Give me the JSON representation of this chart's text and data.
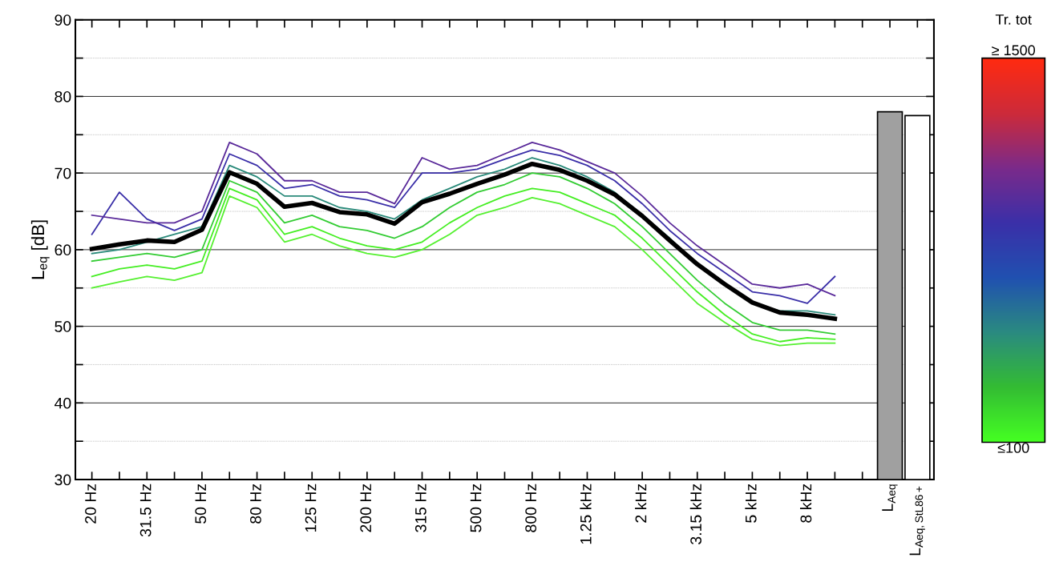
{
  "chart_data": {
    "type": "line",
    "ylabel": "L$_{eq}$ [dB]",
    "categories": [
      "20 Hz",
      null,
      "31.5 Hz",
      null,
      "50 Hz",
      null,
      "80 Hz",
      null,
      "125 Hz",
      null,
      "200 Hz",
      null,
      "315 Hz",
      null,
      "500 Hz",
      null,
      "800 Hz",
      null,
      "1.25 kHz",
      null,
      "2 kHz",
      null,
      "3.15 kHz",
      null,
      "5 kHz",
      null,
      "8 kHz",
      null,
      null,
      "L$_{Aeq}$",
      "L$_{Aeq,StL86+}$"
    ],
    "ylim": [
      30,
      90
    ],
    "yticks": [
      30,
      {
        "value": 35,
        "label": null
      },
      40,
      {
        "value": 45,
        "label": null
      },
      50,
      {
        "value": 55,
        "label": null
      },
      60,
      {
        "value": 65,
        "label": null
      },
      70,
      {
        "value": 75,
        "label": null
      },
      80,
      {
        "value": 85,
        "label": null
      },
      90
    ],
    "grid": "y",
    "legend": false,
    "marker": "none",
    "line_style": "solid",
    "clabel": "Tr. tot",
    "clim": [
      100,
      1500
    ],
    "cticks": [
      {
        "value": 100,
        "label": "≤100"
      },
      {
        "value": 1500,
        "label": "≥ 1500"
      }
    ],
    "series": [
      {
        "color": "#55f030",
        "values": [
          55,
          55.8,
          56.5,
          56,
          57,
          67,
          65.5,
          61,
          62,
          60.5,
          59.5,
          59,
          60,
          62,
          64.5,
          65.5,
          66.8,
          66,
          64.5,
          63,
          60,
          56.5,
          53,
          50.5,
          48.3,
          47.5,
          47.8,
          47.8,
          null,
          null,
          null
        ]
      },
      {
        "color": "#44ee22",
        "values": [
          56.5,
          57.5,
          58,
          57.5,
          58.5,
          68,
          66.5,
          62,
          63,
          61.5,
          60.5,
          60,
          61,
          63.5,
          65.5,
          67,
          68,
          67.5,
          66,
          64.5,
          61.5,
          58,
          54.5,
          51.5,
          49,
          48,
          48.5,
          48.3,
          null,
          null,
          null
        ]
      },
      {
        "color": "#33cc33",
        "values": [
          58.5,
          59,
          59.5,
          59,
          60,
          69,
          67.5,
          63.5,
          64.5,
          63,
          62.5,
          61.5,
          63,
          65.5,
          67.5,
          68.5,
          70,
          69.5,
          68,
          66,
          63,
          59.5,
          56,
          53,
          50.5,
          49.5,
          49.5,
          49,
          null,
          null,
          null
        ]
      },
      {
        "color": "#2a8a7a",
        "values": [
          59.5,
          60,
          61,
          62,
          63,
          71,
          69.5,
          67,
          67,
          65.5,
          65,
          64,
          66.5,
          68,
          69.5,
          70.5,
          72,
          71,
          69.5,
          67.5,
          64.5,
          61.5,
          58,
          55.5,
          53,
          52,
          52,
          51.5,
          null,
          null,
          null
        ]
      },
      {
        "color": "#3a2fa8",
        "values": [
          62,
          67.5,
          64,
          62.5,
          64,
          72.5,
          71,
          68,
          68.5,
          67,
          66.5,
          65.5,
          70,
          70,
          70.5,
          71.8,
          73,
          72.3,
          71,
          69,
          66,
          62.5,
          59.5,
          57,
          54.5,
          54,
          53,
          56.5,
          null,
          null,
          null
        ]
      },
      {
        "color": "#5a2a9a",
        "values": [
          64.5,
          64,
          63.5,
          63.5,
          65,
          74,
          72.5,
          69,
          69,
          67.5,
          67.5,
          66,
          72,
          70.5,
          71,
          72.5,
          74,
          73,
          71.5,
          70,
          67,
          63.5,
          60.5,
          58,
          55.5,
          55,
          55.5,
          54,
          null,
          null,
          null
        ]
      },
      {
        "color": "#000000",
        "values": [
          60.1,
          60.7,
          61.2,
          61,
          62.6,
          70.1,
          68.6,
          65.6,
          66.1,
          64.9,
          64.6,
          63.4,
          66.2,
          67.3,
          68.6,
          69.8,
          71.2,
          70.4,
          69,
          67.2,
          64.4,
          61.2,
          58.1,
          55.5,
          53.1,
          51.8,
          51.5,
          51,
          null,
          null,
          null
        ]
      },
      {
        "type": "bar",
        "colors": [
          null,
          null,
          null,
          null,
          null,
          null,
          null,
          null,
          null,
          null,
          null,
          null,
          null,
          null,
          null,
          null,
          null,
          null,
          null,
          null,
          null,
          null,
          null,
          null,
          null,
          null,
          null,
          null,
          null,
          "#a0a0a0",
          "#ffffff"
        ],
        "values": [
          null,
          null,
          null,
          null,
          null,
          null,
          null,
          null,
          null,
          null,
          null,
          null,
          null,
          null,
          null,
          null,
          null,
          null,
          null,
          null,
          null,
          null,
          null,
          null,
          null,
          null,
          null,
          null,
          null,
          78,
          77.5
        ]
      }
    ]
  }
}
